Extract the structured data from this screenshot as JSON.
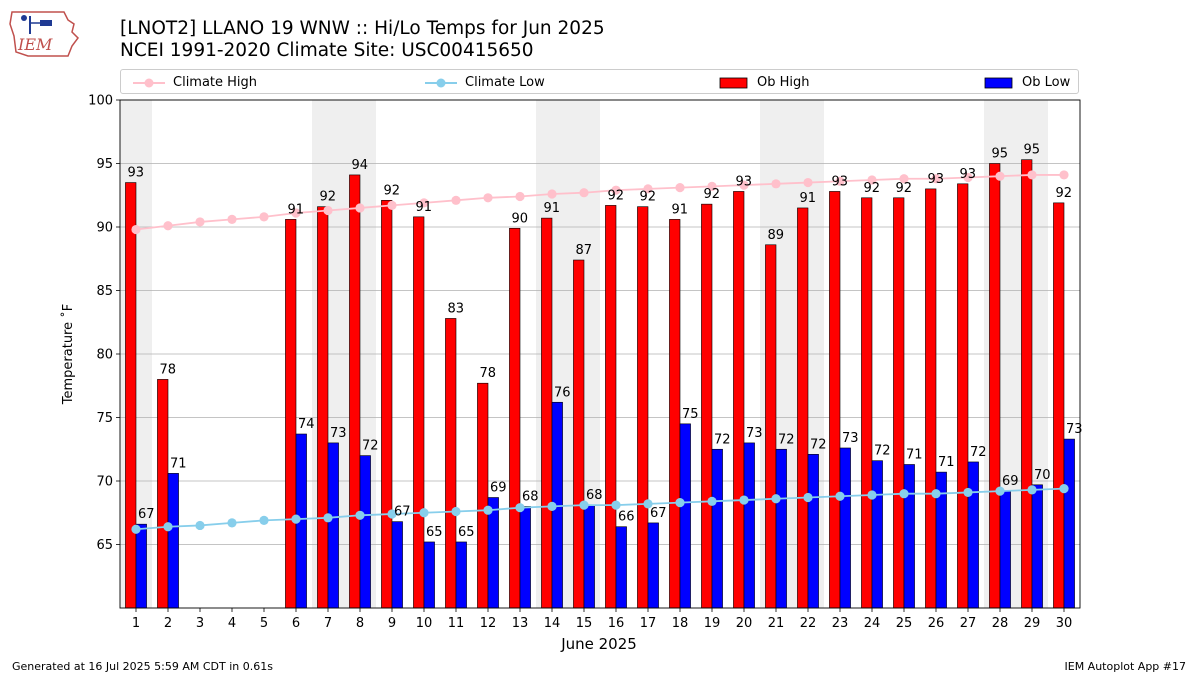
{
  "logo": {
    "text": "IEM"
  },
  "title": {
    "line1": "[LNOT2] LLANO 19 WNW :: Hi/Lo Temps for Jun 2025",
    "line2": "NCEI 1991-2020 Climate Site: USC00415650"
  },
  "footer": {
    "left": "Generated at 16 Jul 2025 5:59 AM CDT in 0.61s",
    "right": "IEM Autoplot App #17"
  },
  "colors": {
    "climate_high": "#ffc0cb",
    "climate_low": "#87ceeb",
    "ob_high": "#ff0000",
    "ob_low": "#0000ff",
    "weekend_band": "#efefef"
  },
  "legend": [
    {
      "label": "Climate High",
      "kind": "line",
      "color": "#ffc0cb"
    },
    {
      "label": "Climate Low",
      "kind": "line",
      "color": "#87ceeb"
    },
    {
      "label": "Ob High",
      "kind": "bar",
      "color": "#ff0000"
    },
    {
      "label": "Ob Low",
      "kind": "bar",
      "color": "#0000ff"
    }
  ],
  "chart_data": {
    "type": "bar",
    "xlabel": "June 2025",
    "ylabel": "Temperature ˚F",
    "ylim": [
      60,
      100
    ],
    "yticks": [
      65,
      70,
      75,
      80,
      85,
      90,
      95,
      100
    ],
    "grid": "horizontal",
    "legend_position": "top",
    "categories": [
      "1",
      "2",
      "3",
      "4",
      "5",
      "6",
      "7",
      "8",
      "9",
      "10",
      "11",
      "12",
      "13",
      "14",
      "15",
      "16",
      "17",
      "18",
      "19",
      "20",
      "21",
      "22",
      "23",
      "24",
      "25",
      "26",
      "27",
      "28",
      "29",
      "30"
    ],
    "shaded_days": [
      1,
      7,
      8,
      14,
      15,
      21,
      22,
      28,
      29
    ],
    "series": [
      {
        "name": "Ob High",
        "kind": "bar",
        "color": "#ff0000",
        "values": [
          93.5,
          78,
          null,
          null,
          null,
          90.6,
          91.6,
          94.1,
          92.1,
          90.8,
          82.8,
          77.7,
          89.9,
          90.7,
          87.4,
          91.7,
          91.6,
          90.6,
          91.8,
          92.8,
          88.6,
          91.5,
          92.8,
          92.3,
          92.3,
          93,
          93.4,
          95,
          95.3,
          91.9
        ],
        "labels": [
          "93",
          "78",
          "",
          "",
          "",
          "91",
          "92",
          "94",
          "92",
          "91",
          "83",
          "78",
          "90",
          "91",
          "87",
          "92",
          "92",
          "91",
          "92",
          "93",
          "89",
          "91",
          "93",
          "92",
          "92",
          "93",
          "93",
          "95",
          "95",
          "92"
        ]
      },
      {
        "name": "Ob Low",
        "kind": "bar",
        "color": "#0000ff",
        "values": [
          66.6,
          70.6,
          null,
          null,
          null,
          73.7,
          73,
          72,
          66.8,
          65.2,
          65.2,
          68.7,
          68,
          76.2,
          68.1,
          66.4,
          66.7,
          74.5,
          72.5,
          73,
          72.5,
          72.1,
          72.6,
          71.6,
          71.3,
          70.7,
          71.5,
          69.2,
          69.7,
          73.3
        ],
        "labels": [
          "67",
          "71",
          "",
          "",
          "",
          "74",
          "73",
          "72",
          "67",
          "65",
          "65",
          "69",
          "68",
          "76",
          "68",
          "66",
          "67",
          "75",
          "72",
          "73",
          "72",
          "72",
          "73",
          "72",
          "71",
          "71",
          "72",
          "69",
          "70",
          "73"
        ]
      },
      {
        "name": "Climate High",
        "kind": "line",
        "color": "#ffc0cb",
        "values": [
          89.8,
          90.1,
          90.4,
          90.6,
          90.8,
          91.1,
          91.3,
          91.5,
          91.7,
          91.9,
          92.1,
          92.3,
          92.4,
          92.6,
          92.7,
          92.9,
          93,
          93.1,
          93.2,
          93.3,
          93.4,
          93.5,
          93.6,
          93.7,
          93.8,
          93.8,
          93.9,
          94,
          94.1,
          94.1
        ]
      },
      {
        "name": "Climate Low",
        "kind": "line",
        "color": "#87ceeb",
        "values": [
          66.2,
          66.4,
          66.5,
          66.7,
          66.9,
          67,
          67.1,
          67.3,
          67.4,
          67.5,
          67.6,
          67.7,
          67.9,
          68,
          68.1,
          68.1,
          68.2,
          68.3,
          68.4,
          68.5,
          68.6,
          68.7,
          68.8,
          68.9,
          69,
          69,
          69.1,
          69.2,
          69.3,
          69.4
        ]
      }
    ]
  }
}
